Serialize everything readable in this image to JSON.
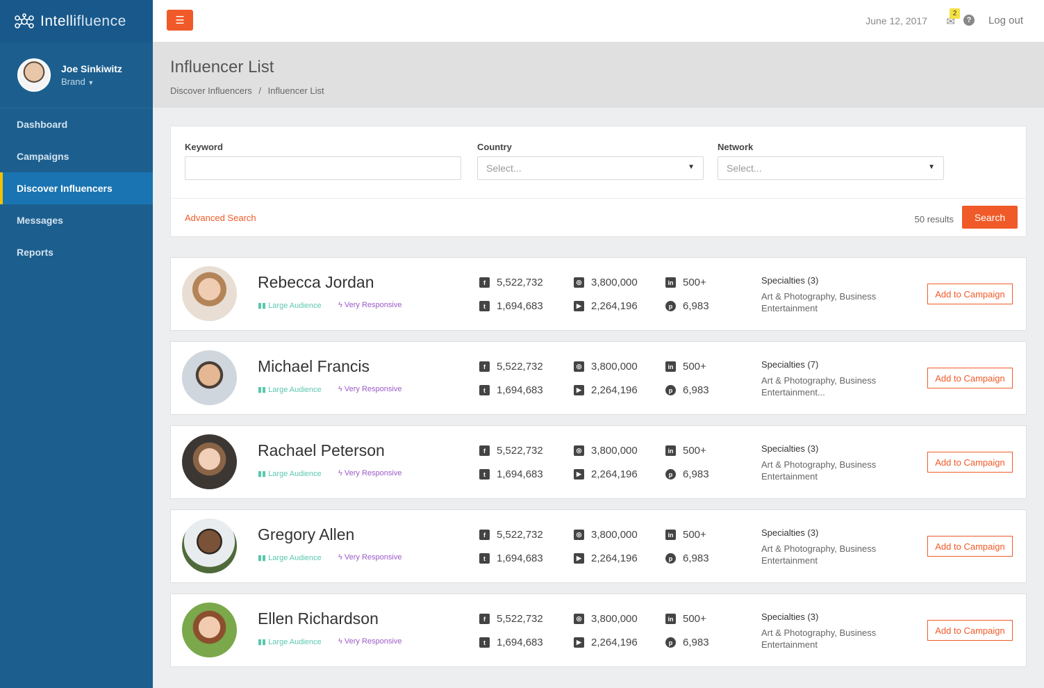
{
  "app": {
    "brand_a": "Intelli",
    "brand_b": "fluence"
  },
  "user": {
    "name": "Joe Sinkiwitz",
    "role": "Brand"
  },
  "nav": [
    {
      "label": "Dashboard"
    },
    {
      "label": "Campaigns"
    },
    {
      "label": "Discover Influencers"
    },
    {
      "label": "Messages"
    },
    {
      "label": "Reports"
    }
  ],
  "header": {
    "date": "June 12, 2017",
    "mail_count": "2",
    "logout": "Log out"
  },
  "page": {
    "title": "Influencer List",
    "crumb1": "Discover Influencers",
    "crumb_sep": "/",
    "crumb2": "Influencer List"
  },
  "search": {
    "keyword_label": "Keyword",
    "country_label": "Country",
    "country_placeholder": "Select...",
    "network_label": "Network",
    "network_placeholder": "Select...",
    "advanced": "Advanced Search",
    "results": "50 results",
    "button": "Search"
  },
  "tags": {
    "large": "Large Audience",
    "responsive": "Very Responsive"
  },
  "add_label": "Add to Campaign",
  "influencers": [
    {
      "name": "Rebecca Jordan",
      "facebook": "5,522,732",
      "twitter": "1,694,683",
      "instagram": "3,800,000",
      "youtube": "2,264,196",
      "linkedin": "500+",
      "pinterest": "6,983",
      "spec_title": "Specialties (3)",
      "spec_line1": "Art & Photography, Business",
      "spec_line2": "Entertainment"
    },
    {
      "name": "Michael Francis",
      "facebook": "5,522,732",
      "twitter": "1,694,683",
      "instagram": "3,800,000",
      "youtube": "2,264,196",
      "linkedin": "500+",
      "pinterest": "6,983",
      "spec_title": "Specialties (7)",
      "spec_line1": "Art & Photography, Business",
      "spec_line2": "Entertainment..."
    },
    {
      "name": "Rachael Peterson",
      "facebook": "5,522,732",
      "twitter": "1,694,683",
      "instagram": "3,800,000",
      "youtube": "2,264,196",
      "linkedin": "500+",
      "pinterest": "6,983",
      "spec_title": "Specialties (3)",
      "spec_line1": "Art & Photography, Business",
      "spec_line2": "Entertainment"
    },
    {
      "name": "Gregory Allen",
      "facebook": "5,522,732",
      "twitter": "1,694,683",
      "instagram": "3,800,000",
      "youtube": "2,264,196",
      "linkedin": "500+",
      "pinterest": "6,983",
      "spec_title": "Specialties (3)",
      "spec_line1": "Art & Photography, Business",
      "spec_line2": "Entertainment"
    },
    {
      "name": "Ellen Richardson",
      "facebook": "5,522,732",
      "twitter": "1,694,683",
      "instagram": "3,800,000",
      "youtube": "2,264,196",
      "linkedin": "500+",
      "pinterest": "6,983",
      "spec_title": "Specialties (3)",
      "spec_line1": "Art & Photography, Business",
      "spec_line2": "Entertainment"
    }
  ],
  "colors": {
    "accent": "#f05a28",
    "sidebar": "#1c5f8f",
    "active_nav": "#1a74b1",
    "nav_marker": "#f2c200"
  }
}
